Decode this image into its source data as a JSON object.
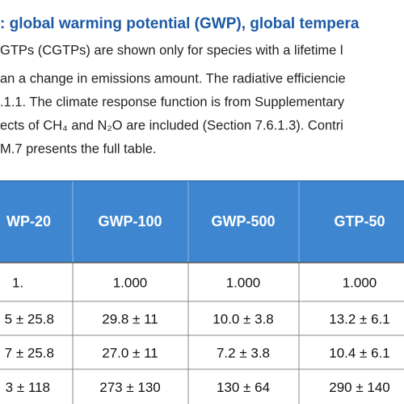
{
  "caption": {
    "title": ": global warming potential (GWP), global tempera",
    "lines": [
      "GTPs (CGTPs) are shown only for species with a lifetime l",
      "an a change in emissions amount. The radiative efficiencie",
      ".1.1. The climate response function is from Supplementary",
      "ects of CH₄ and N₂O are included (Section 7.6.1.3). Contri",
      "M.7 presents the full table."
    ]
  },
  "table": {
    "header": [
      "WP-20",
      "GWP-100",
      "GWP-500",
      "GTP-50"
    ],
    "rows": [
      [
        "1.",
        "1.000",
        "1.000",
        "1.000"
      ],
      [
        "5 ± 25.8",
        "29.8 ± 11",
        "10.0 ± 3.8",
        "13.2 ± 6.1"
      ],
      [
        "7 ± 25.8",
        "27.0 ± 11",
        "7.2 ± 3.8",
        "10.4 ± 6.1"
      ],
      [
        "3 ± 118",
        "273 ± 130",
        "130 ± 64",
        "290 ± 140"
      ]
    ]
  }
}
